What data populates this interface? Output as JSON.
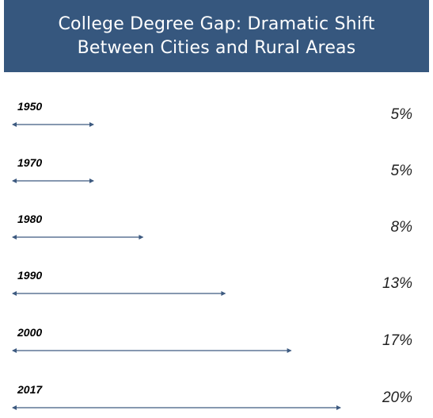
{
  "header": {
    "title_line1": "College Degree Gap: Dramatic Shift",
    "title_line2": "Between Cities and Rural Areas"
  },
  "colors": {
    "header_bg": "#36577e",
    "arrow": "#3d5a80"
  },
  "chart_data": {
    "type": "bar",
    "title": "College Degree Gap: Dramatic Shift Between Cities and Rural Areas",
    "categories": [
      "1950",
      "1970",
      "1980",
      "1990",
      "2000",
      "2017"
    ],
    "values": [
      5,
      5,
      8,
      13,
      17,
      20
    ],
    "value_labels": [
      "5%",
      "5%",
      "8%",
      "13%",
      "17%",
      "20%"
    ],
    "xlim": [
      0,
      20
    ],
    "grid": false,
    "legend": "none"
  }
}
